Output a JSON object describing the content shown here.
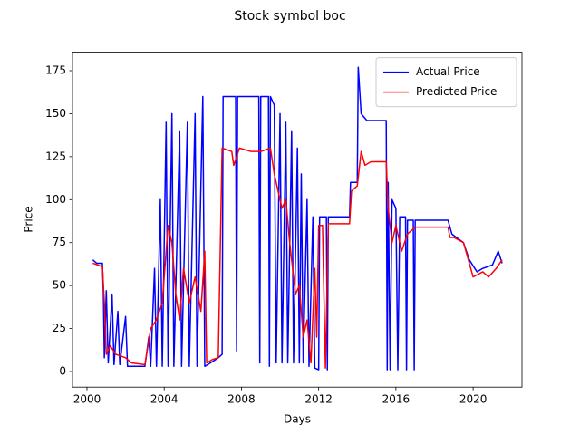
{
  "chart_data": {
    "type": "line",
    "title": "Stock symbol boc",
    "x_label": "Days",
    "y_label": "Price",
    "xlim": [
      1999.25,
      2022.53
    ],
    "xticks": [
      2000,
      2004,
      2008,
      2012,
      2016,
      2020
    ],
    "ylim": [
      -9.07,
      185.75
    ],
    "yticks": [
      0,
      25,
      50,
      75,
      100,
      125,
      150,
      175
    ],
    "legend": "upper right",
    "grid": false,
    "series": [
      {
        "name": "Actual Price",
        "color": "#0000ff",
        "x": [
          2000.3,
          2000.5,
          2000.8,
          2000.85,
          2000.9,
          2001.0,
          2001.1,
          2001.3,
          2001.4,
          2001.6,
          2001.7,
          2002.0,
          2002.1,
          2002.5,
          2003.0,
          2003.2,
          2003.3,
          2003.5,
          2003.6,
          2003.8,
          2003.9,
          2004.1,
          2004.2,
          2004.4,
          2004.5,
          2004.8,
          2004.9,
          2005.2,
          2005.3,
          2005.6,
          2005.7,
          2006.0,
          2006.1,
          2006.4,
          2006.8,
          2007.0,
          2007.05,
          2007.7,
          2007.75,
          2007.8,
          2008.9,
          2008.95,
          2009.0,
          2009.4,
          2009.45,
          2009.5,
          2009.7,
          2009.8,
          2010.0,
          2010.1,
          2010.3,
          2010.4,
          2010.6,
          2010.7,
          2010.9,
          2011.0,
          2011.1,
          2011.2,
          2011.4,
          2011.5,
          2011.7,
          2011.8,
          2012.0,
          2012.05,
          2012.4,
          2012.45,
          2012.5,
          2013.6,
          2013.65,
          2014.0,
          2014.05,
          2014.2,
          2014.5,
          2015.5,
          2015.55,
          2015.6,
          2015.7,
          2015.8,
          2016.0,
          2016.1,
          2016.2,
          2016.5,
          2016.55,
          2016.6,
          2016.9,
          2016.95,
          2017.0,
          2018.7,
          2018.9,
          2019.5,
          2019.8,
          2020.2,
          2020.5,
          2021.0,
          2021.3,
          2021.5
        ],
        "values": [
          65,
          63,
          63,
          45,
          8,
          47,
          5,
          45,
          4,
          35,
          4,
          32,
          3,
          3,
          3,
          20,
          3,
          60,
          3,
          100,
          3,
          145,
          3,
          150,
          3,
          140,
          3,
          145,
          3,
          150,
          3,
          160,
          3,
          5,
          8,
          10,
          160,
          160,
          12,
          160,
          160,
          5,
          160,
          160,
          3,
          160,
          155,
          5,
          150,
          5,
          145,
          5,
          140,
          5,
          130,
          5,
          115,
          5,
          100,
          3,
          90,
          2,
          1,
          90,
          90,
          1,
          90,
          90,
          110,
          110,
          177,
          150,
          146,
          146,
          1,
          110,
          1,
          100,
          95,
          1,
          90,
          90,
          1,
          88,
          88,
          1,
          88,
          88,
          80,
          75,
          65,
          58,
          60,
          62,
          70,
          63
        ]
      },
      {
        "name": "Predicted Price",
        "color": "#ff0000",
        "x": [
          2000.3,
          2000.8,
          2000.9,
          2001.0,
          2001.2,
          2001.5,
          2002.0,
          2002.3,
          2003.0,
          2003.3,
          2003.6,
          2003.9,
          2004.2,
          2004.4,
          2004.6,
          2004.8,
          2005.0,
          2005.3,
          2005.6,
          2005.9,
          2006.1,
          2006.2,
          2006.5,
          2006.8,
          2007.0,
          2007.5,
          2007.6,
          2007.9,
          2008.5,
          2009.0,
          2009.5,
          2009.7,
          2009.9,
          2010.1,
          2010.3,
          2010.5,
          2010.8,
          2011.0,
          2011.2,
          2011.4,
          2011.6,
          2011.8,
          2011.9,
          2012.0,
          2012.2,
          2012.35,
          2012.5,
          2013.6,
          2013.7,
          2014.0,
          2014.2,
          2014.4,
          2014.7,
          2015.5,
          2015.6,
          2015.8,
          2016.0,
          2016.3,
          2016.6,
          2017.0,
          2018.7,
          2018.8,
          2019.0,
          2019.5,
          2019.8,
          2020.0,
          2020.5,
          2020.8,
          2021.2,
          2021.5
        ],
        "values": [
          63,
          61,
          40,
          10,
          15,
          10,
          8,
          5,
          4,
          25,
          30,
          40,
          85,
          75,
          45,
          30,
          60,
          40,
          55,
          35,
          70,
          5,
          7,
          8,
          130,
          128,
          120,
          130,
          128,
          128,
          130,
          115,
          105,
          95,
          100,
          75,
          45,
          50,
          20,
          30,
          5,
          60,
          20,
          85,
          85,
          2,
          86,
          86,
          105,
          108,
          128,
          120,
          122,
          122,
          95,
          75,
          85,
          70,
          80,
          84,
          84,
          78,
          78,
          75,
          63,
          55,
          58,
          55,
          60,
          65
        ]
      }
    ]
  }
}
